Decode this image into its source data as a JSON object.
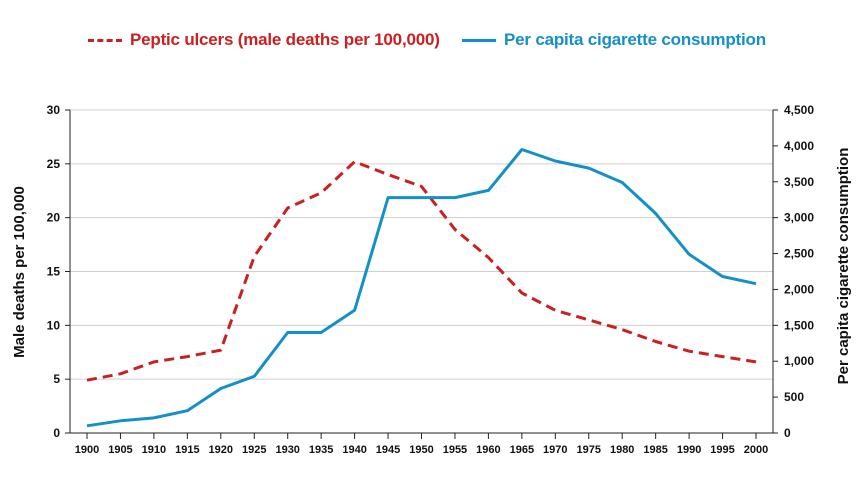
{
  "chart_data": {
    "type": "line",
    "title": "",
    "xlabel": "",
    "ylabel": "Male deaths per 100,000",
    "y2label": "Per capita cigarette consumption",
    "x": [
      1900,
      1905,
      1910,
      1915,
      1920,
      1925,
      1930,
      1935,
      1940,
      1945,
      1950,
      1955,
      1960,
      1965,
      1970,
      1975,
      1980,
      1985,
      1990,
      1995,
      2000
    ],
    "x_tick_labels": [
      "1900",
      "1905",
      "1910",
      "1915",
      "1920",
      "1925",
      "1930",
      "1935",
      "1940",
      "1945",
      "1950",
      "1955",
      "1960",
      "1965",
      "1970",
      "1975",
      "1980",
      "1985",
      "1990",
      "1995",
      "2000"
    ],
    "ylim": [
      0,
      30
    ],
    "y_ticks": [
      0,
      5,
      10,
      15,
      20,
      25,
      30
    ],
    "y_tick_labels": [
      "0",
      "5",
      "10",
      "15",
      "20",
      "25",
      "30"
    ],
    "y2lim": [
      0,
      4500
    ],
    "y2_ticks": [
      0,
      500,
      1000,
      1500,
      2000,
      2500,
      3000,
      3500,
      4000,
      4500
    ],
    "y2_tick_labels": [
      "0",
      "500",
      "1,000",
      "1,500",
      "2,000",
      "2,500",
      "3,000",
      "3,500",
      "4,000",
      "4,500"
    ],
    "grid": true,
    "legend_position": "top",
    "series": [
      {
        "name": "Peptic ulcers (male deaths per 100,000)",
        "axis": "left",
        "color": "#cc1f1f",
        "style": "dashed",
        "values": [
          4.9,
          5.5,
          6.6,
          7.1,
          7.7,
          16.4,
          20.9,
          22.3,
          25.2,
          24.0,
          22.9,
          18.9,
          16.3,
          13.0,
          11.4,
          10.5,
          9.6,
          8.5,
          7.6,
          7.1,
          6.6
        ]
      },
      {
        "name": "Per capita cigarette consumption",
        "axis": "right",
        "color": "#1490c8",
        "style": "solid",
        "values": [
          100,
          170,
          210,
          310,
          620,
          790,
          1400,
          1400,
          1710,
          3280,
          3280,
          3280,
          3380,
          3950,
          3790,
          3690,
          3490,
          3060,
          2490,
          2180,
          2080
        ]
      }
    ]
  }
}
